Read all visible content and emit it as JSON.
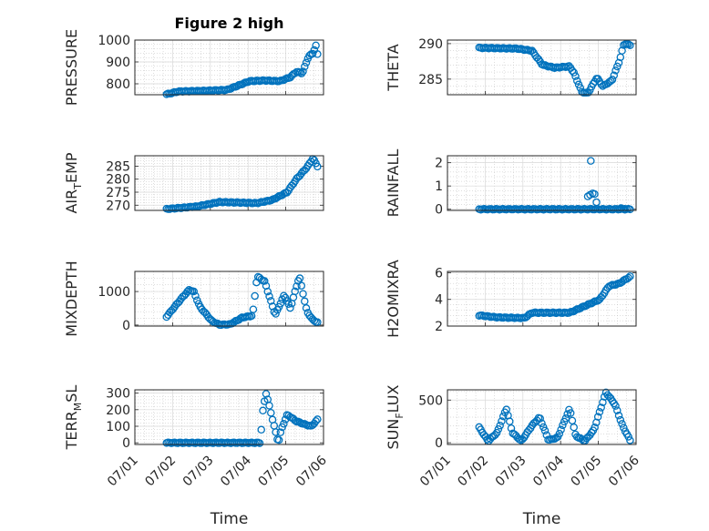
{
  "colors": {
    "series": "#0072BD",
    "axes": "#262626"
  },
  "chart_data": [
    {
      "type": "scatter",
      "title": "Figure 2 high",
      "ylabel": {
        "main": "PRESSURE",
        "sub": ""
      },
      "xlabel": "",
      "xlim": [
        0,
        5
      ],
      "ylim": [
        750,
        1000
      ],
      "yticks": [
        800,
        900,
        1000
      ],
      "xticks": [],
      "grid": true,
      "x_start": 0.84,
      "x_end": 4.84,
      "anchors": [
        [
          0,
          752
        ],
        [
          0.08,
          765
        ],
        [
          0.25,
          768
        ],
        [
          0.4,
          772
        ],
        [
          0.55,
          812
        ],
        [
          0.65,
          815
        ],
        [
          0.75,
          812
        ],
        [
          0.82,
          830
        ],
        [
          0.86,
          855
        ],
        [
          0.9,
          848
        ],
        [
          0.94,
          925
        ],
        [
          0.97,
          940
        ],
        [
          0.99,
          975
        ],
        [
          1,
          935
        ]
      ],
      "n": 95
    },
    {
      "type": "scatter",
      "title": "",
      "ylabel": {
        "main": "THETA",
        "sub": ""
      },
      "xlabel": "",
      "xlim": [
        0,
        5
      ],
      "ylim": [
        282.8,
        290.5
      ],
      "yticks": [
        285,
        290
      ],
      "xticks": [],
      "grid": true,
      "x_start": 0.84,
      "x_end": 4.84,
      "anchors": [
        [
          0,
          289.4
        ],
        [
          0.25,
          289.3
        ],
        [
          0.35,
          289.0
        ],
        [
          0.42,
          287.0
        ],
        [
          0.5,
          286.6
        ],
        [
          0.6,
          286.8
        ],
        [
          0.63,
          285.8
        ],
        [
          0.68,
          283.2
        ],
        [
          0.72,
          283.0
        ],
        [
          0.78,
          285.2
        ],
        [
          0.82,
          284.0
        ],
        [
          0.88,
          284.8
        ],
        [
          0.93,
          287.6
        ],
        [
          0.96,
          290.0
        ],
        [
          1,
          289.8
        ]
      ],
      "n": 95
    },
    {
      "type": "scatter",
      "title": "",
      "ylabel": {
        "main": "AIR",
        "sub": "T",
        "rest": "EMP"
      },
      "xlabel": "",
      "xlim": [
        0,
        5
      ],
      "ylim": [
        268,
        289
      ],
      "yticks": [
        270,
        275,
        280,
        285
      ],
      "xticks": [],
      "grid": true,
      "x_start": 0.84,
      "x_end": 4.84,
      "anchors": [
        [
          0,
          268.5
        ],
        [
          0.2,
          269.5
        ],
        [
          0.35,
          271.2
        ],
        [
          0.6,
          270.8
        ],
        [
          0.7,
          272.0
        ],
        [
          0.8,
          275.0
        ],
        [
          0.86,
          280.0
        ],
        [
          0.93,
          284.5
        ],
        [
          0.97,
          288.0
        ],
        [
          1,
          285.0
        ]
      ],
      "n": 95
    },
    {
      "type": "scatter",
      "title": "",
      "ylabel": {
        "main": "RAINFALL",
        "sub": ""
      },
      "xlabel": "",
      "xlim": [
        0,
        5
      ],
      "ylim": [
        -0.05,
        2.3
      ],
      "yticks": [
        0,
        1,
        2
      ],
      "xticks": [],
      "grid": true,
      "x_start": 0.84,
      "x_end": 4.84,
      "anchors": [
        [
          0,
          0
        ],
        [
          1,
          0
        ]
      ],
      "extra": [
        [
          3.8,
          2.08
        ],
        [
          3.72,
          0.55
        ],
        [
          3.78,
          0.62
        ],
        [
          3.85,
          0.68
        ],
        [
          3.9,
          0.65
        ],
        [
          3.95,
          0.3
        ],
        [
          4.6,
          0.05
        ],
        [
          4.7,
          0.02
        ]
      ],
      "n": 90
    },
    {
      "type": "scatter",
      "title": "",
      "ylabel": {
        "main": "MIXDEPTH",
        "sub": ""
      },
      "xlabel": "",
      "xlim": [
        0,
        5
      ],
      "ylim": [
        -30,
        1600
      ],
      "yticks": [
        0,
        1000
      ],
      "xticks": [],
      "grid": true,
      "x_start": 0.84,
      "x_end": 4.84,
      "anchors": [
        [
          0,
          250
        ],
        [
          0.1,
          800
        ],
        [
          0.15,
          1050
        ],
        [
          0.18,
          1000
        ],
        [
          0.22,
          550
        ],
        [
          0.3,
          120
        ],
        [
          0.35,
          10
        ],
        [
          0.42,
          20
        ],
        [
          0.5,
          220
        ],
        [
          0.57,
          280
        ],
        [
          0.6,
          1450
        ],
        [
          0.65,
          1300
        ],
        [
          0.72,
          300
        ],
        [
          0.78,
          900
        ],
        [
          0.82,
          500
        ],
        [
          0.88,
          1450
        ],
        [
          0.93,
          400
        ],
        [
          0.97,
          150
        ],
        [
          1,
          80
        ]
      ],
      "n": 95
    },
    {
      "type": "scatter",
      "title": "",
      "ylabel": {
        "main": "H2OMIXRA",
        "sub": ""
      },
      "xlabel": "",
      "xlim": [
        0,
        5
      ],
      "ylim": [
        2,
        6.1
      ],
      "yticks": [
        2,
        4,
        6
      ],
      "xticks": [],
      "grid": true,
      "x_start": 0.84,
      "x_end": 4.84,
      "anchors": [
        [
          0,
          2.8
        ],
        [
          0.12,
          2.65
        ],
        [
          0.3,
          2.6
        ],
        [
          0.35,
          3.0
        ],
        [
          0.6,
          3.0
        ],
        [
          0.7,
          3.5
        ],
        [
          0.8,
          4.0
        ],
        [
          0.86,
          5.0
        ],
        [
          0.93,
          5.2
        ],
        [
          0.97,
          5.5
        ],
        [
          1,
          5.7
        ]
      ],
      "n": 95
    },
    {
      "type": "scatter",
      "title": "",
      "ylabel": {
        "main": "TERR",
        "sub": "M",
        "rest": "SL"
      },
      "xlabel": "Time",
      "xlim": [
        0,
        5
      ],
      "ylim": [
        -10,
        320
      ],
      "yticks": [
        0,
        100,
        200,
        300
      ],
      "xticks": [
        "07/01",
        "07/02",
        "07/03",
        "07/04",
        "07/05",
        "07/06"
      ],
      "grid": true,
      "x_start": 0.84,
      "x_end": 4.84,
      "anchors": [
        [
          0,
          0
        ],
        [
          0.62,
          0
        ],
        [
          0.64,
          210
        ],
        [
          0.66,
          300
        ],
        [
          0.7,
          150
        ],
        [
          0.74,
          0
        ],
        [
          0.76,
          80
        ],
        [
          0.8,
          170
        ],
        [
          0.86,
          130
        ],
        [
          0.92,
          110
        ],
        [
          0.96,
          100
        ],
        [
          1,
          140
        ]
      ],
      "n": 95
    },
    {
      "type": "scatter",
      "title": "",
      "ylabel": {
        "main": "SUN",
        "sub": "F",
        "rest": "LUX"
      },
      "xlabel": "Time",
      "xlim": [
        0,
        5
      ],
      "ylim": [
        -20,
        620
      ],
      "yticks": [
        0,
        500
      ],
      "xticks": [
        "07/01",
        "07/02",
        "07/03",
        "07/04",
        "07/05",
        "07/06"
      ],
      "grid": true,
      "x_start": 0.84,
      "x_end": 4.84,
      "anchors": [
        [
          0,
          180
        ],
        [
          0.06,
          20
        ],
        [
          0.12,
          120
        ],
        [
          0.18,
          400
        ],
        [
          0.22,
          120
        ],
        [
          0.28,
          20
        ],
        [
          0.35,
          200
        ],
        [
          0.4,
          300
        ],
        [
          0.46,
          30
        ],
        [
          0.52,
          60
        ],
        [
          0.6,
          400
        ],
        [
          0.64,
          80
        ],
        [
          0.7,
          20
        ],
        [
          0.76,
          150
        ],
        [
          0.84,
          590
        ],
        [
          0.9,
          450
        ],
        [
          0.95,
          200
        ],
        [
          1,
          30
        ]
      ],
      "n": 95
    }
  ]
}
